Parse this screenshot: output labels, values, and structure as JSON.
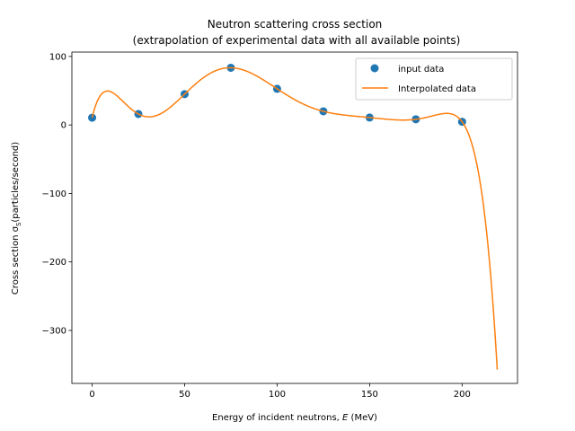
{
  "chart_data": {
    "type": "line",
    "title": "Neutron scattering cross section",
    "subtitle": "(extrapolation of experimental data with all available points)",
    "xlabel": "Energy of incident neutrons, E (MeV)",
    "ylabel": "Cross section σ_S(particles/second)",
    "xlim": [
      -10.95,
      229.95
    ],
    "ylim": [
      -377.4,
      106.4
    ],
    "xticks": [
      0,
      50,
      100,
      150,
      200
    ],
    "yticks": [
      100,
      0,
      -100,
      -200,
      -300
    ],
    "xtick_labels": [
      "0",
      "50",
      "100",
      "150",
      "200"
    ],
    "ytick_labels": [
      "100",
      "0",
      "−100",
      "−200",
      "−300"
    ],
    "grid": false,
    "legend_position": "upper right",
    "series": [
      {
        "name": "input data",
        "kind": "scatter",
        "color": "#1f77b4",
        "x": [
          0,
          25,
          50,
          75,
          100,
          125,
          150,
          175,
          200
        ],
        "y": [
          10.6,
          16.0,
          45.0,
          83.5,
          52.8,
          19.9,
          10.8,
          8.25,
          4.7
        ]
      },
      {
        "name": "Interpolated data",
        "kind": "line",
        "color": "#ff7f0e",
        "x_range": [
          0,
          219
        ],
        "method": "degree-8 polynomial through input data"
      }
    ]
  }
}
